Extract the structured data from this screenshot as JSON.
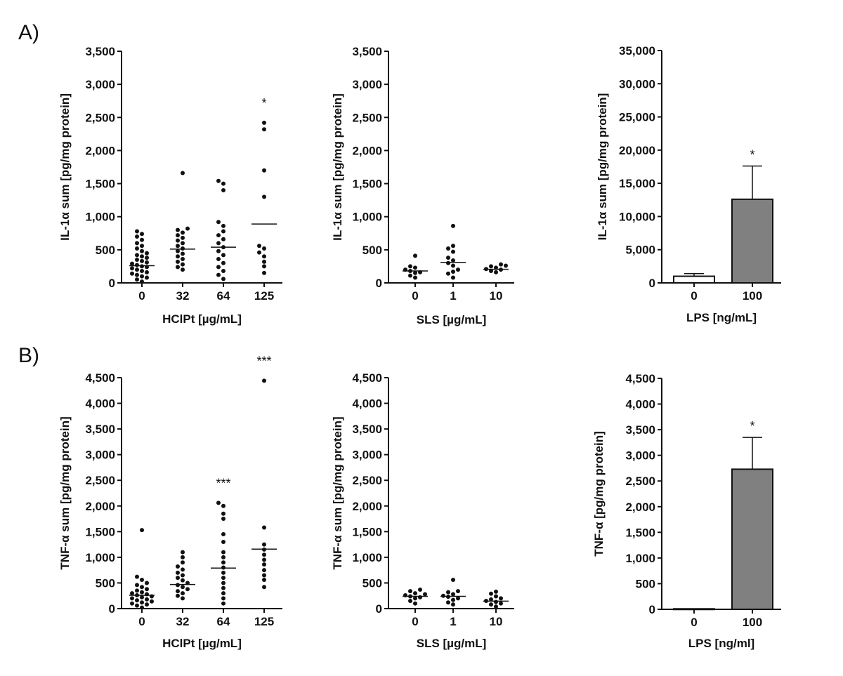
{
  "panel_labels": {
    "a": "A)",
    "b": "B)"
  },
  "colors": {
    "bar_fill": "#808080",
    "bar_empty": "#ffffff",
    "ink": "#111111"
  },
  "chart_data": [
    {
      "type": "scatter",
      "title": "",
      "xlabel": "HClPt [µg/mL]",
      "ylabel": "IL-1α sum [pg/mg protein]",
      "ylim": [
        0,
        3500
      ],
      "yticks": [
        0,
        500,
        1000,
        1500,
        2000,
        2500,
        3000,
        3500
      ],
      "ytick_labels": [
        "0",
        "500",
        "1,000",
        "1,500",
        "2,000",
        "2,500",
        "3,000",
        "3,500"
      ],
      "categories": [
        "0",
        "32",
        "64",
        "125"
      ],
      "points": [
        [
          20,
          50,
          80,
          100,
          120,
          140,
          160,
          180,
          200,
          220,
          240,
          250,
          270,
          290,
          310,
          330,
          350,
          380,
          400,
          420,
          450,
          480,
          520,
          560,
          600,
          650,
          700,
          740,
          780
        ],
        [
          200,
          240,
          280,
          320,
          360,
          400,
          440,
          480,
          520,
          560,
          600,
          640,
          680,
          720,
          760,
          800,
          820,
          1660
        ],
        [
          60,
          120,
          180,
          240,
          300,
          360,
          420,
          480,
          540,
          600,
          660,
          720,
          780,
          860,
          920,
          1400,
          1500,
          1540
        ],
        [
          150,
          250,
          320,
          400,
          460,
          520,
          560,
          1300,
          1700,
          2320,
          2420
        ]
      ],
      "means": [
        260,
        510,
        540,
        890
      ],
      "annotations": [
        "",
        "",
        "",
        "*"
      ]
    },
    {
      "type": "scatter",
      "title": "",
      "xlabel": "SLS [µg/mL]",
      "ylabel": "IL-1α sum [pg/mg protein]",
      "ylim": [
        0,
        3500
      ],
      "yticks": [
        0,
        500,
        1000,
        1500,
        2000,
        2500,
        3000,
        3500
      ],
      "ytick_labels": [
        "0",
        "500",
        "1,000",
        "1,500",
        "2,000",
        "2,500",
        "3,000",
        "3,500"
      ],
      "categories": [
        "0",
        "1",
        "10"
      ],
      "points": [
        [
          80,
          110,
          150,
          160,
          180,
          200,
          230,
          250,
          410
        ],
        [
          80,
          140,
          170,
          200,
          260,
          300,
          340,
          380,
          470,
          520,
          560,
          860
        ],
        [
          160,
          180,
          200,
          210,
          230,
          250,
          260,
          280
        ]
      ],
      "means": [
        180,
        310,
        205
      ],
      "annotations": [
        "",
        "",
        ""
      ]
    },
    {
      "type": "bar",
      "title": "",
      "xlabel": "LPS [ng/mL]",
      "ylabel": "IL-1α sum [pg/mg protein]",
      "ylim": [
        0,
        35000
      ],
      "yticks": [
        0,
        5000,
        10000,
        15000,
        20000,
        25000,
        30000,
        35000
      ],
      "ytick_labels": [
        "0",
        "5,000",
        "10,000",
        "15,000",
        "20,000",
        "25,000",
        "30,000",
        "35,000"
      ],
      "categories": [
        "0",
        "100"
      ],
      "values": [
        1000,
        12600
      ],
      "errors": [
        400,
        5000
      ],
      "fills": [
        "empty",
        "filled"
      ],
      "annotations": [
        "",
        "*"
      ]
    },
    {
      "type": "scatter",
      "title": "",
      "xlabel": "HClPt [µg/mL]",
      "ylabel": "TNF-α sum [pg/mg protein]",
      "ylim": [
        0,
        4500
      ],
      "yticks": [
        0,
        500,
        1000,
        1500,
        2000,
        2500,
        3000,
        3500,
        4000,
        4500
      ],
      "ytick_labels": [
        "0",
        "500",
        "1,000",
        "1,500",
        "2,000",
        "2,500",
        "3,000",
        "3,500",
        "4,000",
        "4,500"
      ],
      "categories": [
        "0",
        "32",
        "64",
        "125"
      ],
      "points": [
        [
          20,
          60,
          80,
          100,
          120,
          140,
          160,
          180,
          200,
          220,
          240,
          260,
          280,
          300,
          320,
          350,
          380,
          420,
          460,
          500,
          560,
          620,
          1530
        ],
        [
          200,
          250,
          300,
          340,
          380,
          420,
          460,
          500,
          550,
          600,
          650,
          700,
          760,
          820,
          900,
          1000,
          1100
        ],
        [
          100,
          200,
          300,
          400,
          500,
          600,
          700,
          800,
          900,
          1000,
          1100,
          1300,
          1450,
          1750,
          1850,
          2000,
          2060
        ],
        [
          420,
          560,
          650,
          750,
          860,
          950,
          1050,
          1150,
          1250,
          1580,
          4440
        ]
      ],
      "means": [
        260,
        470,
        790,
        1160
      ],
      "annotations": [
        "",
        "",
        "***",
        "***"
      ]
    },
    {
      "type": "scatter",
      "title": "",
      "xlabel": "SLS [µg/mL]",
      "ylabel": "TNF-α sum [pg/mg protein]",
      "ylim": [
        0,
        4500
      ],
      "yticks": [
        0,
        500,
        1000,
        1500,
        2000,
        2500,
        3000,
        3500,
        4000,
        4500
      ],
      "ytick_labels": [
        "0",
        "500",
        "1,000",
        "1,500",
        "2,000",
        "2,500",
        "3,000",
        "3,500",
        "4,000",
        "4,500"
      ],
      "categories": [
        "0",
        "1",
        "10"
      ],
      "points": [
        [
          100,
          150,
          200,
          220,
          240,
          260,
          280,
          300,
          340,
          370
        ],
        [
          80,
          120,
          170,
          200,
          230,
          250,
          280,
          320,
          340,
          560
        ],
        [
          40,
          80,
          100,
          130,
          150,
          180,
          200,
          240,
          290,
          330
        ]
      ],
      "means": [
        240,
        240,
        145
      ],
      "annotations": [
        "",
        "",
        ""
      ]
    },
    {
      "type": "bar",
      "title": "",
      "xlabel": "LPS [ng/ml]",
      "ylabel": "TNF-α [pg/mg protein]",
      "ylim": [
        0,
        4500
      ],
      "yticks": [
        0,
        500,
        1000,
        1500,
        2000,
        2500,
        3000,
        3500,
        4000,
        4500
      ],
      "ytick_labels": [
        "0",
        "500",
        "1,000",
        "1,500",
        "2,000",
        "2,500",
        "3,000",
        "3,500",
        "4,000",
        "4,500"
      ],
      "categories": [
        "0",
        "100"
      ],
      "values": [
        10,
        2730
      ],
      "errors": [
        0,
        620
      ],
      "fills": [
        "empty",
        "filled"
      ],
      "annotations": [
        "",
        "*"
      ]
    }
  ]
}
